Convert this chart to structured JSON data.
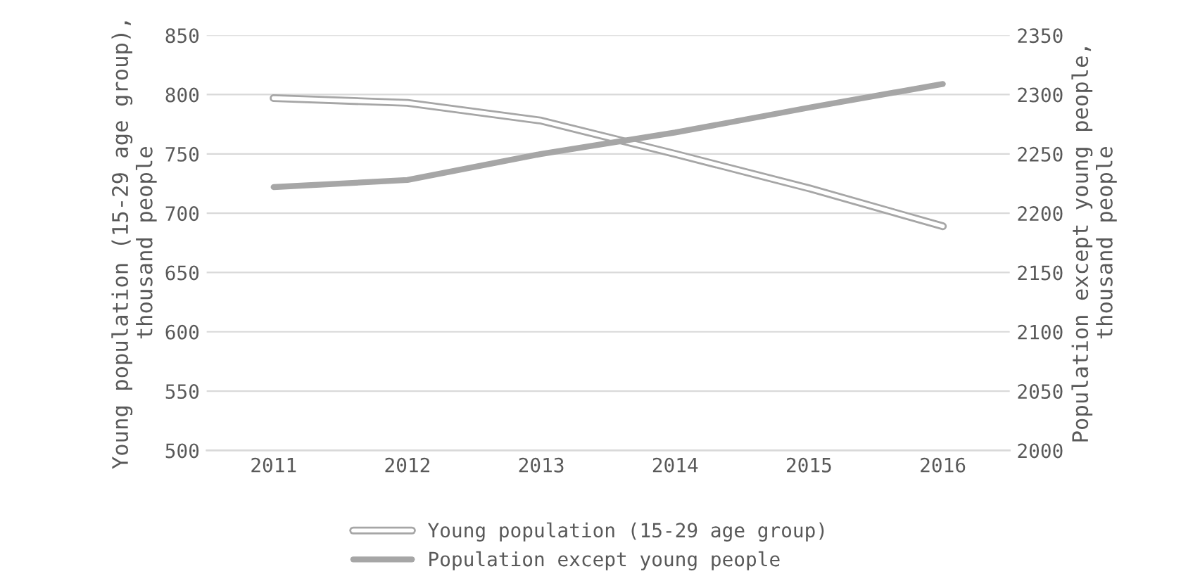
{
  "chart_data": {
    "type": "line",
    "categories": [
      "2011",
      "2012",
      "2013",
      "2014",
      "2015",
      "2016"
    ],
    "ylabel": "Young population (15-29 age group), thousand people",
    "y2label": "Population except young people, thousand people",
    "series": [
      {
        "name": "Young population (15-29 age group)",
        "color": "#a6a6a6",
        "values": [
          797,
          793,
          778,
          750,
          721,
          689
        ]
      },
      {
        "name": "Population except young people",
        "color": "#a6a6a6",
        "axis": "y2",
        "values": [
          2222,
          2228,
          2250,
          2268,
          2289,
          2309
        ]
      }
    ],
    "ylim": [
      500,
      850
    ],
    "yticks": [
      500,
      550,
      600,
      650,
      700,
      750,
      800,
      850
    ],
    "y2lim": [
      2000,
      2350
    ],
    "y2ticks": [
      2000,
      2050,
      2100,
      2150,
      2200,
      2250,
      2300,
      2350
    ],
    "grid": "y",
    "legend": "bottom",
    "marker": "none"
  }
}
